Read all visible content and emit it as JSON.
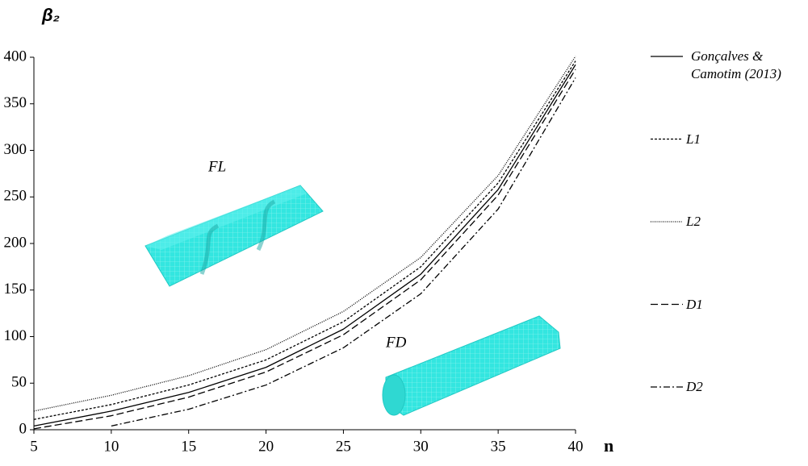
{
  "chart_data": {
    "type": "line",
    "y_label": "β₂",
    "x_label": "n",
    "x": [
      5,
      10,
      15,
      20,
      25,
      30,
      35,
      40
    ],
    "series": [
      {
        "name": "Gonçalves & Camotim (2013)",
        "color": "#000000",
        "dash": "none",
        "values": [
          4,
          20,
          40,
          67,
          108,
          167,
          258,
          392
        ]
      },
      {
        "name": "L1",
        "color": "#000000",
        "dash": "3,2",
        "values": [
          11,
          27,
          48,
          75,
          116,
          175,
          265,
          396
        ]
      },
      {
        "name": "L2",
        "color": "#000000",
        "dash": "1,1.5",
        "values": [
          20,
          37,
          58,
          86,
          127,
          185,
          273,
          401
        ]
      },
      {
        "name": "D1",
        "color": "#000000",
        "dash": "9,4",
        "values": [
          1,
          15,
          35,
          62,
          102,
          161,
          252,
          387
        ]
      },
      {
        "name": "D2",
        "color": "#000000",
        "dash": "8,3,2,3",
        "values": [
          null,
          4,
          22,
          48,
          88,
          146,
          237,
          378
        ]
      }
    ],
    "annotations": [
      "FL",
      "FD"
    ],
    "xlim": [
      5,
      40
    ],
    "xticks": [
      5,
      10,
      15,
      20,
      25,
      30,
      35,
      40
    ],
    "ylim": [
      0,
      400
    ],
    "yticks": [
      0,
      50,
      100,
      150,
      200,
      250,
      300,
      350,
      400
    ],
    "grid": false,
    "legend": "right"
  }
}
